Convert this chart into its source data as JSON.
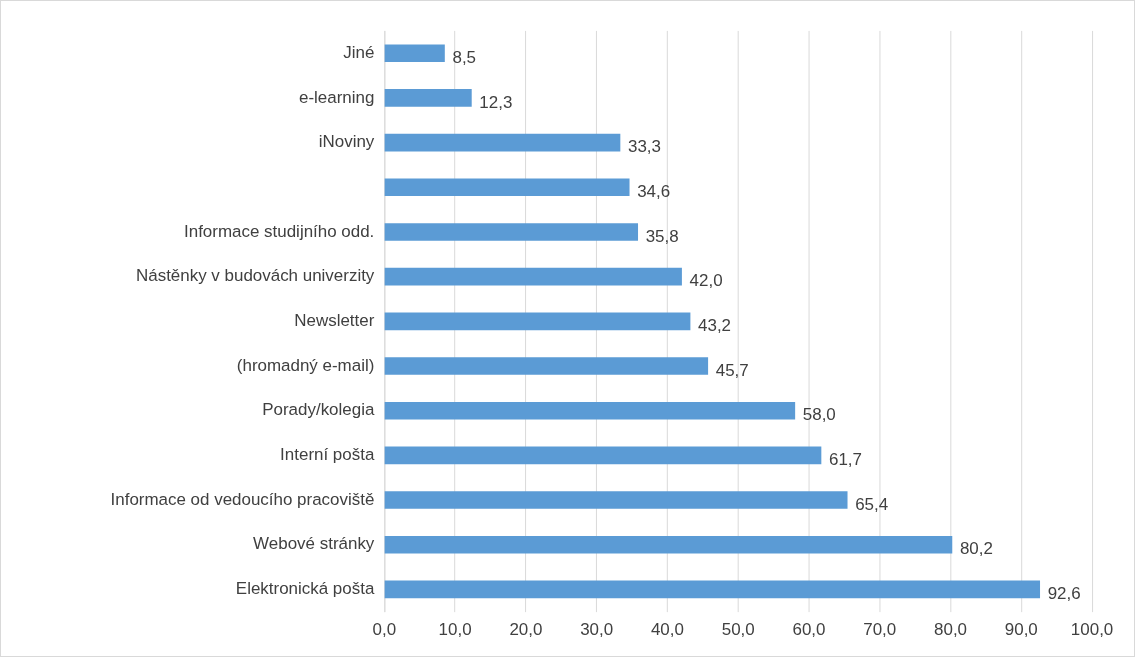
{
  "chart_data": {
    "type": "bar",
    "orientation": "horizontal",
    "categories": [
      "Jiné",
      "e-learning",
      "iNoviny",
      null,
      "Informace studijního odd.",
      "Nástěnky v budovách univerzity",
      "Newsletter",
      "(hromadný e-mail)",
      "Porady/kolegia",
      "Interní pošta",
      "Informace od vedoucího pracoviště",
      "Webové stránky",
      "Elektronická pošta"
    ],
    "values": [
      8.5,
      12.3,
      33.3,
      34.6,
      35.8,
      42.0,
      43.2,
      45.7,
      58.0,
      61.7,
      65.4,
      80.2,
      92.6
    ],
    "value_labels": [
      "8,5",
      "12,3",
      "33,3",
      "34,6",
      "35,8",
      "42,0",
      "43,2",
      "45,7",
      "58,0",
      "61,7",
      "65,4",
      "80,2",
      "92,6"
    ],
    "color": "#5b9bd5",
    "xlim": [
      0,
      100
    ],
    "xticks": [
      {
        "value": 0,
        "label": "0,0"
      },
      {
        "value": 10,
        "label": "10,0"
      },
      {
        "value": 20,
        "label": "20,0"
      },
      {
        "value": 30,
        "label": "30,0"
      },
      {
        "value": 40,
        "label": "40,0"
      },
      {
        "value": 50,
        "label": "50,0"
      },
      {
        "value": 60,
        "label": "60,0"
      },
      {
        "value": 70,
        "label": "70,0"
      },
      {
        "value": 80,
        "label": "80,0"
      },
      {
        "value": 90,
        "label": "90,0"
      },
      {
        "value": 100,
        "label": "100,0"
      }
    ],
    "grid": "x"
  }
}
